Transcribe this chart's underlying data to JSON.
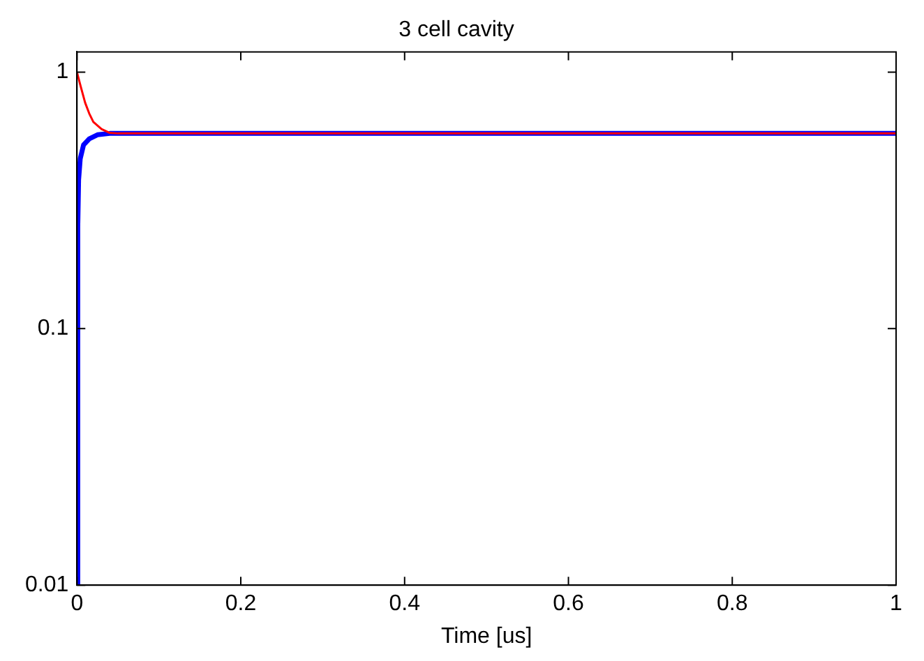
{
  "chart_data": {
    "type": "line",
    "title": "3 cell cavity",
    "xlabel": "Time [us]",
    "xlim": [
      0,
      1
    ],
    "xticks": [
      0,
      0.2,
      0.4,
      0.6,
      0.8,
      1
    ],
    "ylim": [
      0.01,
      1.2
    ],
    "yticks": [
      0.01,
      0.1,
      1
    ],
    "log": true,
    "grid": false,
    "legend": false,
    "marker": "none",
    "line_style": "solid",
    "series": [
      {
        "color": "#ff0000",
        "x": [
          0,
          0.005,
          0.01,
          0.015,
          0.02,
          0.03,
          0.04,
          0.05,
          1
        ],
        "values": [
          1.0,
          0.87,
          0.76,
          0.69,
          0.64,
          0.6,
          0.58,
          0.577,
          0.577
        ]
      },
      {
        "color": "#0000ff",
        "x": [
          0,
          0.001,
          0.002,
          0.004,
          0.008,
          0.015,
          0.025,
          0.04,
          1
        ],
        "values": [
          0.01,
          0.25,
          0.38,
          0.46,
          0.52,
          0.55,
          0.57,
          0.577,
          0.577
        ]
      }
    ]
  }
}
